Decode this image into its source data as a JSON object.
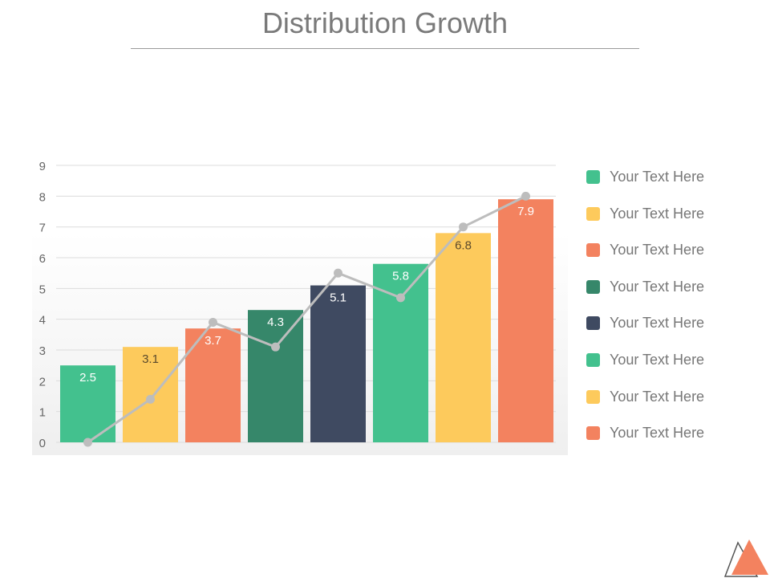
{
  "title": "Distribution Growth",
  "chart_data": {
    "type": "bar",
    "title": "Distribution Growth",
    "ylim": [
      0,
      9
    ],
    "yticks": [
      0,
      1,
      2,
      3,
      4,
      5,
      6,
      7,
      8,
      9
    ],
    "grid": true,
    "legend_placement": "right",
    "values": [
      2.5,
      3.1,
      3.7,
      4.3,
      5.1,
      5.8,
      6.8,
      7.9
    ],
    "data_labels": [
      "2.5",
      "3.1",
      "3.7",
      "4.3",
      "5.1",
      "5.8",
      "6.8",
      "7.9"
    ],
    "bar_colors": [
      "#43c18e",
      "#fdca5c",
      "#f3825f",
      "#36876a",
      "#3f4a61",
      "#43c18e",
      "#fdca5c",
      "#f3825f"
    ],
    "line_series": {
      "type": "line",
      "values": [
        0,
        1.4,
        3.9,
        3.1,
        5.5,
        4.7,
        7.0,
        8.0
      ],
      "color": "#bdbdbd"
    },
    "legend": [
      {
        "label": "Your Text Here",
        "color": "#43c18e"
      },
      {
        "label": "Your Text Here",
        "color": "#fdca5c"
      },
      {
        "label": "Your Text Here",
        "color": "#f3825f"
      },
      {
        "label": "Your Text Here",
        "color": "#36876a"
      },
      {
        "label": "Your Text Here",
        "color": "#3f4a61"
      },
      {
        "label": "Your Text Here",
        "color": "#43c18e"
      },
      {
        "label": "Your Text Here",
        "color": "#fdca5c"
      },
      {
        "label": "Your Text Here",
        "color": "#f3825f"
      }
    ]
  },
  "logo": {
    "icon": "triangle-logo-icon",
    "color": "#f3825f"
  }
}
